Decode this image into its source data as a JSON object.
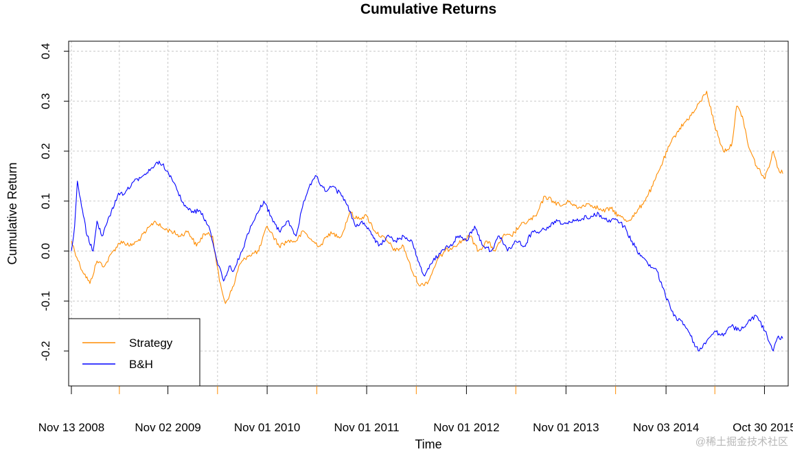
{
  "chart_data": {
    "type": "line",
    "title": "Cumulative Returns",
    "xlabel": "Time",
    "ylabel": "Cumulative Return",
    "ylim": [
      -0.27,
      0.42
    ],
    "yticks": [
      -0.2,
      -0.1,
      0.0,
      0.1,
      0.2,
      0.3,
      0.4
    ],
    "ytick_labels": [
      "-0.2",
      "-0.1",
      "0.0",
      "0.1",
      "0.2",
      "0.3",
      "0.4"
    ],
    "xlim": [
      "2008-11-03",
      "2016-01-25"
    ],
    "xtick_labels": [
      "Nov 13 2008",
      "Nov 02 2009",
      "Nov 01 2010",
      "Nov 01 2011",
      "Nov 01 2012",
      "Nov 01 2013",
      "Nov 03 2014",
      "Oct 30 2015"
    ],
    "xtick_dates": [
      "2008-11-13",
      "2009-11-02",
      "2010-11-01",
      "2011-11-01",
      "2012-11-01",
      "2013-11-01",
      "2014-11-03",
      "2015-10-30"
    ],
    "minor_tick_dates": [
      "2009-05-08",
      "2010-05-03",
      "2011-05-02",
      "2012-05-01",
      "2013-05-01",
      "2014-05-02",
      "2015-05-01"
    ],
    "grid": true,
    "legend": "bottom-left",
    "series": [
      {
        "name": "Strategy",
        "color": "#FF8C00",
        "points": [
          [
            "2008-11-13",
            0.02
          ],
          [
            "2008-12-15",
            -0.03
          ],
          [
            "2009-01-20",
            -0.065
          ],
          [
            "2009-02-15",
            -0.02
          ],
          [
            "2009-03-15",
            -0.03
          ],
          [
            "2009-04-15",
            0.0
          ],
          [
            "2009-05-15",
            0.02
          ],
          [
            "2009-06-15",
            0.01
          ],
          [
            "2009-07-15",
            0.02
          ],
          [
            "2009-08-15",
            0.04
          ],
          [
            "2009-09-15",
            0.06
          ],
          [
            "2009-10-15",
            0.045
          ],
          [
            "2009-11-15",
            0.04
          ],
          [
            "2009-12-15",
            0.03
          ],
          [
            "2010-01-15",
            0.04
          ],
          [
            "2010-02-15",
            0.01
          ],
          [
            "2010-03-15",
            0.035
          ],
          [
            "2010-04-15",
            0.03
          ],
          [
            "2010-05-10",
            -0.06
          ],
          [
            "2010-06-01",
            -0.105
          ],
          [
            "2010-07-01",
            -0.07
          ],
          [
            "2010-07-20",
            -0.03
          ],
          [
            "2010-08-20",
            -0.01
          ],
          [
            "2010-10-01",
            0.0
          ],
          [
            "2010-11-01",
            0.05
          ],
          [
            "2010-12-15",
            0.01
          ],
          [
            "2011-01-15",
            0.02
          ],
          [
            "2011-02-15",
            0.02
          ],
          [
            "2011-03-15",
            0.04
          ],
          [
            "2011-04-15",
            0.02
          ],
          [
            "2011-05-15",
            0.01
          ],
          [
            "2011-06-15",
            0.035
          ],
          [
            "2011-08-01",
            0.03
          ],
          [
            "2011-09-01",
            0.08
          ],
          [
            "2011-09-20",
            0.065
          ],
          [
            "2011-11-01",
            0.07
          ],
          [
            "2011-12-01",
            0.04
          ],
          [
            "2012-01-15",
            0.02
          ],
          [
            "2012-02-15",
            0.0
          ],
          [
            "2012-03-15",
            0.01
          ],
          [
            "2012-04-15",
            -0.04
          ],
          [
            "2012-05-15",
            -0.07
          ],
          [
            "2012-06-15",
            -0.06
          ],
          [
            "2012-07-15",
            -0.02
          ],
          [
            "2012-08-15",
            0.0
          ],
          [
            "2012-09-15",
            0.01
          ],
          [
            "2012-10-15",
            0.02
          ],
          [
            "2012-11-15",
            0.03
          ],
          [
            "2012-12-15",
            0.0
          ],
          [
            "2013-01-15",
            0.02
          ],
          [
            "2013-02-15",
            0.0
          ],
          [
            "2013-03-15",
            0.03
          ],
          [
            "2013-04-15",
            0.03
          ],
          [
            "2013-05-15",
            0.05
          ],
          [
            "2013-06-15",
            0.06
          ],
          [
            "2013-07-15",
            0.07
          ],
          [
            "2013-08-15",
            0.11
          ],
          [
            "2013-09-15",
            0.1
          ],
          [
            "2013-10-15",
            0.09
          ],
          [
            "2013-11-15",
            0.1
          ],
          [
            "2013-12-15",
            0.085
          ],
          [
            "2014-01-15",
            0.095
          ],
          [
            "2014-02-15",
            0.09
          ],
          [
            "2014-03-15",
            0.08
          ],
          [
            "2014-04-15",
            0.085
          ],
          [
            "2014-05-15",
            0.07
          ],
          [
            "2014-06-15",
            0.06
          ],
          [
            "2014-07-15",
            0.075
          ],
          [
            "2014-08-15",
            0.1
          ],
          [
            "2014-09-15",
            0.13
          ],
          [
            "2014-10-15",
            0.17
          ],
          [
            "2014-11-15",
            0.21
          ],
          [
            "2014-12-15",
            0.24
          ],
          [
            "2015-01-15",
            0.26
          ],
          [
            "2015-02-15",
            0.28
          ],
          [
            "2015-03-10",
            0.3
          ],
          [
            "2015-04-01",
            0.32
          ],
          [
            "2015-05-01",
            0.25
          ],
          [
            "2015-06-01",
            0.2
          ],
          [
            "2015-07-01",
            0.21
          ],
          [
            "2015-07-20",
            0.29
          ],
          [
            "2015-08-10",
            0.27
          ],
          [
            "2015-09-01",
            0.21
          ],
          [
            "2015-10-01",
            0.17
          ],
          [
            "2015-11-01",
            0.145
          ],
          [
            "2015-12-01",
            0.2
          ],
          [
            "2015-12-20",
            0.165
          ],
          [
            "2016-01-05",
            0.155
          ]
        ]
      },
      {
        "name": "B&H",
        "color": "#0000FF",
        "points": [
          [
            "2008-11-13",
            0.0
          ],
          [
            "2008-11-25",
            0.05
          ],
          [
            "2008-12-05",
            0.14
          ],
          [
            "2008-12-20",
            0.09
          ],
          [
            "2009-01-10",
            0.03
          ],
          [
            "2009-02-01",
            0.0
          ],
          [
            "2009-02-15",
            0.06
          ],
          [
            "2009-03-05",
            0.03
          ],
          [
            "2009-04-01",
            0.07
          ],
          [
            "2009-05-01",
            0.11
          ],
          [
            "2009-06-01",
            0.12
          ],
          [
            "2009-07-01",
            0.14
          ],
          [
            "2009-08-01",
            0.15
          ],
          [
            "2009-09-01",
            0.165
          ],
          [
            "2009-10-01",
            0.18
          ],
          [
            "2009-11-01",
            0.16
          ],
          [
            "2009-12-01",
            0.13
          ],
          [
            "2010-01-01",
            0.09
          ],
          [
            "2010-02-01",
            0.08
          ],
          [
            "2010-03-01",
            0.08
          ],
          [
            "2010-04-01",
            0.05
          ],
          [
            "2010-05-01",
            -0.02
          ],
          [
            "2010-05-25",
            -0.06
          ],
          [
            "2010-06-15",
            -0.03
          ],
          [
            "2010-07-01",
            -0.04
          ],
          [
            "2010-08-01",
            0.0
          ],
          [
            "2010-09-01",
            0.05
          ],
          [
            "2010-10-01",
            0.08
          ],
          [
            "2010-10-20",
            0.1
          ],
          [
            "2010-11-15",
            0.07
          ],
          [
            "2010-12-15",
            0.04
          ],
          [
            "2011-01-15",
            0.06
          ],
          [
            "2011-02-15",
            0.03
          ],
          [
            "2011-03-15",
            0.1
          ],
          [
            "2011-04-15",
            0.14
          ],
          [
            "2011-05-01",
            0.15
          ],
          [
            "2011-06-01",
            0.12
          ],
          [
            "2011-07-01",
            0.13
          ],
          [
            "2011-08-01",
            0.11
          ],
          [
            "2011-09-01",
            0.08
          ],
          [
            "2011-09-20",
            0.05
          ],
          [
            "2011-10-15",
            0.06
          ],
          [
            "2011-11-15",
            0.04
          ],
          [
            "2011-12-15",
            0.01
          ],
          [
            "2012-01-15",
            0.03
          ],
          [
            "2012-02-15",
            0.02
          ],
          [
            "2012-03-15",
            0.03
          ],
          [
            "2012-04-15",
            0.02
          ],
          [
            "2012-05-15",
            -0.03
          ],
          [
            "2012-06-01",
            -0.05
          ],
          [
            "2012-07-01",
            -0.02
          ],
          [
            "2012-08-01",
            0.0
          ],
          [
            "2012-09-01",
            0.01
          ],
          [
            "2012-10-01",
            0.03
          ],
          [
            "2012-11-01",
            0.02
          ],
          [
            "2012-12-01",
            0.05
          ],
          [
            "2013-01-01",
            0.01
          ],
          [
            "2013-02-01",
            0.0
          ],
          [
            "2013-03-01",
            0.03
          ],
          [
            "2013-04-01",
            0.0
          ],
          [
            "2013-05-01",
            0.02
          ],
          [
            "2013-06-01",
            0.01
          ],
          [
            "2013-07-01",
            0.04
          ],
          [
            "2013-08-01",
            0.04
          ],
          [
            "2013-09-01",
            0.05
          ],
          [
            "2013-10-01",
            0.06
          ],
          [
            "2013-11-01",
            0.055
          ],
          [
            "2013-12-01",
            0.06
          ],
          [
            "2014-01-01",
            0.065
          ],
          [
            "2014-02-01",
            0.07
          ],
          [
            "2014-03-01",
            0.075
          ],
          [
            "2014-04-01",
            0.06
          ],
          [
            "2014-05-01",
            0.065
          ],
          [
            "2014-06-01",
            0.05
          ],
          [
            "2014-07-01",
            0.02
          ],
          [
            "2014-08-01",
            -0.01
          ],
          [
            "2014-09-01",
            -0.03
          ],
          [
            "2014-10-01",
            -0.04
          ],
          [
            "2014-11-01",
            -0.09
          ],
          [
            "2014-12-01",
            -0.13
          ],
          [
            "2015-01-01",
            -0.14
          ],
          [
            "2015-02-01",
            -0.17
          ],
          [
            "2015-03-01",
            -0.2
          ],
          [
            "2015-04-01",
            -0.18
          ],
          [
            "2015-05-01",
            -0.16
          ],
          [
            "2015-06-01",
            -0.17
          ],
          [
            "2015-07-01",
            -0.15
          ],
          [
            "2015-08-01",
            -0.16
          ],
          [
            "2015-09-01",
            -0.14
          ],
          [
            "2015-10-01",
            -0.13
          ],
          [
            "2015-11-01",
            -0.16
          ],
          [
            "2015-12-01",
            -0.2
          ],
          [
            "2015-12-20",
            -0.17
          ],
          [
            "2016-01-05",
            -0.175
          ]
        ]
      }
    ]
  },
  "watermark": "@稀土掘金技术社区"
}
